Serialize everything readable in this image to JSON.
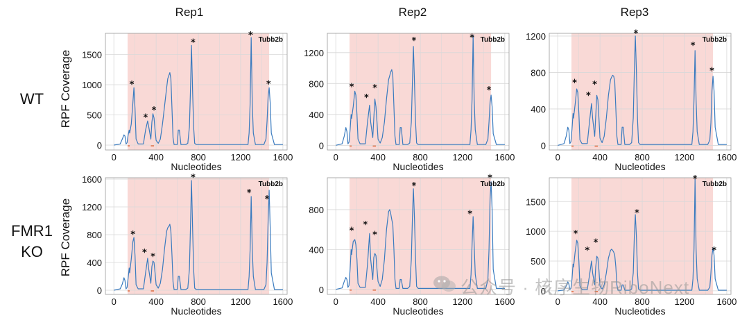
{
  "column_titles": [
    "Rep1",
    "Rep2",
    "Rep3"
  ],
  "row_labels": [
    [
      "WT"
    ],
    [
      "FMR1",
      "KO"
    ]
  ],
  "ylabel": "RPF Coverage",
  "xlabel": "Nucleotides",
  "gene_label": "Tubb2b",
  "marker": "*",
  "watermark": "公众号 · 核序生物RiboNext",
  "colors": {
    "line": "#3a7bbf",
    "cds_shade": "#f9d9d6",
    "grid": "#d8d8d8",
    "frame": "#999999",
    "orf_tick": "#e06a3f"
  },
  "chart_data": [
    {
      "type": "line",
      "panel": "WT-Rep1",
      "xlim": [
        -80,
        1640
      ],
      "ylim": [
        -80,
        1850
      ],
      "xticks": [
        0,
        400,
        800,
        1200,
        1600
      ],
      "yticks": [
        0,
        500,
        1000,
        1500
      ],
      "cds": [
        130,
        1470
      ],
      "x": [
        0,
        60,
        80,
        95,
        105,
        115,
        125,
        135,
        145,
        150,
        165,
        180,
        190,
        200,
        210,
        230,
        260,
        280,
        300,
        320,
        330,
        350,
        360,
        370,
        380,
        390,
        400,
        420,
        440,
        460,
        480,
        500,
        510,
        520,
        530,
        540,
        550,
        560,
        570,
        590,
        600,
        610,
        620,
        635,
        650,
        680,
        700,
        715,
        725,
        735,
        745,
        755,
        765,
        780,
        800,
        900,
        1000,
        1100,
        1200,
        1250,
        1270,
        1280,
        1290,
        1300,
        1310,
        1320,
        1340,
        1380,
        1420,
        1440,
        1450,
        1460,
        1470,
        1480,
        1490,
        1520,
        1560,
        1600
      ],
      "y": [
        0,
        20,
        100,
        170,
        150,
        20,
        40,
        170,
        250,
        200,
        350,
        700,
        950,
        600,
        100,
        20,
        20,
        20,
        250,
        400,
        300,
        100,
        380,
        520,
        450,
        250,
        80,
        30,
        100,
        350,
        650,
        950,
        1100,
        1150,
        1200,
        1100,
        600,
        120,
        10,
        10,
        10,
        250,
        250,
        10,
        10,
        10,
        30,
        300,
        900,
        1650,
        900,
        300,
        30,
        10,
        10,
        10,
        10,
        10,
        10,
        10,
        10,
        200,
        700,
        1780,
        700,
        200,
        10,
        10,
        10,
        100,
        400,
        800,
        950,
        700,
        200,
        10,
        10,
        10
      ],
      "stars": [
        [
          170,
          1020
        ],
        [
          300,
          480
        ],
        [
          380,
          600
        ],
        [
          750,
          1720
        ],
        [
          1295,
          1840
        ],
        [
          1465,
          1030
        ]
      ]
    },
    {
      "type": "line",
      "panel": "WT-Rep2",
      "xlim": [
        -80,
        1640
      ],
      "ylim": [
        -60,
        1450
      ],
      "xticks": [
        0,
        400,
        800,
        1200,
        1600
      ],
      "yticks": [
        0,
        400,
        800,
        1200
      ],
      "cds": [
        130,
        1470
      ],
      "x": [
        0,
        60,
        80,
        95,
        105,
        115,
        125,
        135,
        145,
        150,
        165,
        180,
        190,
        200,
        210,
        230,
        260,
        280,
        300,
        320,
        330,
        350,
        360,
        370,
        380,
        390,
        400,
        420,
        440,
        460,
        480,
        500,
        510,
        520,
        530,
        540,
        550,
        560,
        570,
        590,
        600,
        610,
        620,
        635,
        650,
        680,
        700,
        715,
        725,
        735,
        745,
        755,
        765,
        780,
        800,
        900,
        1000,
        1100,
        1200,
        1250,
        1270,
        1280,
        1290,
        1300,
        1310,
        1320,
        1340,
        1380,
        1420,
        1440,
        1450,
        1460,
        1470,
        1480,
        1490,
        1520,
        1560,
        1600
      ],
      "y": [
        0,
        20,
        120,
        230,
        180,
        20,
        40,
        200,
        400,
        350,
        500,
        700,
        650,
        400,
        80,
        20,
        20,
        20,
        300,
        520,
        300,
        100,
        350,
        600,
        500,
        300,
        80,
        30,
        100,
        300,
        600,
        850,
        900,
        950,
        980,
        900,
        500,
        120,
        10,
        10,
        10,
        230,
        230,
        10,
        10,
        10,
        30,
        300,
        800,
        1280,
        800,
        300,
        30,
        10,
        10,
        10,
        10,
        10,
        10,
        10,
        10,
        200,
        600,
        1420,
        600,
        200,
        10,
        10,
        10,
        80,
        300,
        550,
        650,
        500,
        150,
        10,
        10,
        10
      ],
      "stars": [
        [
          150,
          770
        ],
        [
          290,
          630
        ],
        [
          370,
          760
        ],
        [
          740,
          1370
        ],
        [
          1290,
          1410
        ],
        [
          1450,
          730
        ]
      ]
    },
    {
      "type": "line",
      "panel": "WT-Rep3",
      "xlim": [
        -80,
        1640
      ],
      "ylim": [
        -50,
        1230
      ],
      "xticks": [
        0,
        400,
        800,
        1200,
        1600
      ],
      "yticks": [
        0,
        400,
        800,
        1200
      ],
      "cds": [
        130,
        1470
      ],
      "x": [
        0,
        60,
        80,
        95,
        105,
        115,
        125,
        135,
        145,
        150,
        165,
        180,
        190,
        200,
        210,
        230,
        260,
        280,
        300,
        320,
        330,
        350,
        360,
        370,
        380,
        390,
        400,
        420,
        440,
        460,
        480,
        500,
        510,
        520,
        530,
        540,
        550,
        560,
        570,
        590,
        600,
        610,
        620,
        635,
        650,
        680,
        700,
        715,
        725,
        735,
        745,
        755,
        765,
        780,
        800,
        900,
        1000,
        1100,
        1200,
        1250,
        1270,
        1280,
        1290,
        1300,
        1310,
        1320,
        1340,
        1380,
        1420,
        1440,
        1450,
        1460,
        1470,
        1480,
        1490,
        1520,
        1560,
        1600
      ],
      "y": [
        0,
        20,
        100,
        200,
        170,
        20,
        40,
        180,
        350,
        300,
        450,
        620,
        580,
        350,
        60,
        20,
        20,
        20,
        250,
        460,
        300,
        100,
        320,
        550,
        500,
        300,
        80,
        30,
        100,
        300,
        550,
        720,
        750,
        770,
        760,
        700,
        400,
        100,
        10,
        10,
        10,
        200,
        200,
        10,
        10,
        10,
        30,
        300,
        800,
        1200,
        800,
        300,
        30,
        10,
        10,
        10,
        10,
        10,
        10,
        10,
        10,
        150,
        500,
        1040,
        500,
        150,
        10,
        10,
        10,
        60,
        250,
        600,
        760,
        600,
        200,
        10,
        10,
        10
      ],
      "stars": [
        [
          160,
          700
        ],
        [
          290,
          560
        ],
        [
          350,
          680
        ],
        [
          740,
          1240
        ],
        [
          1280,
          1110
        ],
        [
          1460,
          830
        ]
      ]
    },
    {
      "type": "line",
      "panel": "KO-Rep1",
      "xlim": [
        -80,
        1640
      ],
      "ylim": [
        -60,
        1620
      ],
      "xticks": [
        0,
        400,
        800,
        1200,
        1600
      ],
      "yticks": [
        0,
        400,
        800,
        1200,
        1600
      ],
      "cds": [
        130,
        1470
      ],
      "x": [
        0,
        60,
        80,
        95,
        105,
        115,
        125,
        135,
        145,
        150,
        165,
        180,
        190,
        200,
        210,
        230,
        260,
        280,
        300,
        320,
        330,
        350,
        360,
        370,
        380,
        390,
        400,
        420,
        440,
        460,
        480,
        500,
        510,
        520,
        530,
        540,
        550,
        560,
        570,
        590,
        600,
        610,
        620,
        635,
        650,
        680,
        700,
        715,
        725,
        735,
        745,
        755,
        765,
        780,
        800,
        900,
        1000,
        1100,
        1200,
        1250,
        1270,
        1280,
        1290,
        1300,
        1310,
        1320,
        1340,
        1380,
        1420,
        1440,
        1450,
        1460,
        1470,
        1480,
        1490,
        1520,
        1560,
        1600
      ],
      "y": [
        0,
        20,
        90,
        180,
        140,
        20,
        40,
        180,
        320,
        250,
        450,
        700,
        760,
        500,
        80,
        20,
        20,
        20,
        250,
        460,
        300,
        100,
        340,
        420,
        400,
        250,
        80,
        30,
        100,
        300,
        600,
        850,
        900,
        920,
        950,
        850,
        500,
        120,
        10,
        10,
        10,
        200,
        200,
        10,
        10,
        10,
        30,
        300,
        900,
        1580,
        900,
        300,
        30,
        10,
        10,
        10,
        10,
        10,
        10,
        10,
        10,
        200,
        600,
        1350,
        600,
        200,
        10,
        10,
        10,
        80,
        400,
        1000,
        1440,
        900,
        250,
        10,
        10,
        10
      ],
      "stars": [
        [
          180,
          820
        ],
        [
          290,
          560
        ],
        [
          370,
          500
        ],
        [
          750,
          1640
        ],
        [
          1280,
          1420
        ],
        [
          1450,
          1330
        ]
      ]
    },
    {
      "type": "line",
      "panel": "KO-Rep2",
      "xlim": [
        -80,
        1640
      ],
      "ylim": [
        -50,
        1120
      ],
      "xticks": [
        0,
        400,
        800,
        1200,
        1600
      ],
      "yticks": [
        0,
        400,
        800
      ],
      "cds": [
        130,
        1470
      ],
      "x": [
        0,
        60,
        80,
        95,
        105,
        115,
        125,
        135,
        145,
        150,
        165,
        180,
        190,
        200,
        210,
        230,
        260,
        280,
        300,
        320,
        330,
        350,
        360,
        370,
        380,
        390,
        400,
        420,
        440,
        460,
        480,
        500,
        510,
        520,
        530,
        540,
        550,
        560,
        570,
        590,
        600,
        610,
        620,
        635,
        650,
        680,
        700,
        715,
        725,
        735,
        745,
        755,
        765,
        780,
        800,
        900,
        1000,
        1100,
        1200,
        1250,
        1270,
        1280,
        1290,
        1300,
        1310,
        1320,
        1340,
        1380,
        1420,
        1440,
        1450,
        1460,
        1470,
        1480,
        1490,
        1520,
        1560,
        1600
      ],
      "y": [
        0,
        15,
        80,
        120,
        100,
        20,
        40,
        200,
        400,
        350,
        480,
        500,
        450,
        300,
        60,
        20,
        20,
        20,
        250,
        560,
        300,
        100,
        320,
        360,
        340,
        200,
        80,
        30,
        100,
        300,
        600,
        780,
        800,
        760,
        700,
        650,
        400,
        100,
        10,
        10,
        10,
        100,
        100,
        10,
        10,
        10,
        30,
        300,
        700,
        1010,
        700,
        300,
        30,
        10,
        10,
        10,
        10,
        10,
        10,
        10,
        10,
        150,
        450,
        730,
        450,
        150,
        10,
        10,
        10,
        100,
        400,
        900,
        1080,
        800,
        200,
        10,
        10,
        10
      ],
      "stars": [
        [
          150,
          600
        ],
        [
          280,
          660
        ],
        [
          370,
          560
        ],
        [
          740,
          1050
        ],
        [
          1270,
          770
        ],
        [
          1460,
          1130
        ]
      ]
    },
    {
      "type": "line",
      "panel": "KO-Rep3",
      "xlim": [
        -80,
        1640
      ],
      "ylim": [
        -60,
        1900
      ],
      "xticks": [
        0,
        400,
        800,
        1200,
        1600
      ],
      "yticks": [
        0,
        500,
        1000,
        1500
      ],
      "cds": [
        130,
        1470
      ],
      "x": [
        0,
        60,
        80,
        95,
        105,
        115,
        125,
        135,
        145,
        150,
        165,
        180,
        190,
        200,
        210,
        230,
        260,
        280,
        300,
        320,
        330,
        350,
        360,
        370,
        380,
        390,
        400,
        420,
        440,
        460,
        480,
        500,
        510,
        520,
        530,
        540,
        550,
        560,
        570,
        590,
        600,
        610,
        620,
        635,
        650,
        680,
        700,
        715,
        725,
        735,
        745,
        755,
        765,
        780,
        800,
        900,
        1000,
        1100,
        1200,
        1250,
        1270,
        1280,
        1290,
        1300,
        1310,
        1320,
        1340,
        1380,
        1420,
        1440,
        1450,
        1460,
        1470,
        1480,
        1490,
        1520,
        1560,
        1600
      ],
      "y": [
        0,
        15,
        80,
        150,
        120,
        20,
        40,
        200,
        450,
        400,
        650,
        850,
        800,
        500,
        80,
        20,
        20,
        20,
        250,
        500,
        300,
        100,
        400,
        580,
        550,
        350,
        80,
        30,
        100,
        300,
        550,
        680,
        700,
        680,
        650,
        600,
        400,
        100,
        10,
        10,
        10,
        100,
        100,
        10,
        10,
        10,
        30,
        300,
        900,
        1280,
        900,
        300,
        30,
        10,
        10,
        10,
        10,
        10,
        10,
        10,
        10,
        200,
        700,
        1880,
        700,
        200,
        10,
        10,
        10,
        60,
        300,
        600,
        720,
        600,
        200,
        10,
        10,
        10
      ],
      "stars": [
        [
          170,
          980
        ],
        [
          280,
          700
        ],
        [
          360,
          830
        ],
        [
          750,
          1330
        ],
        [
          1300,
          1900
        ],
        [
          1480,
          700
        ]
      ]
    }
  ]
}
